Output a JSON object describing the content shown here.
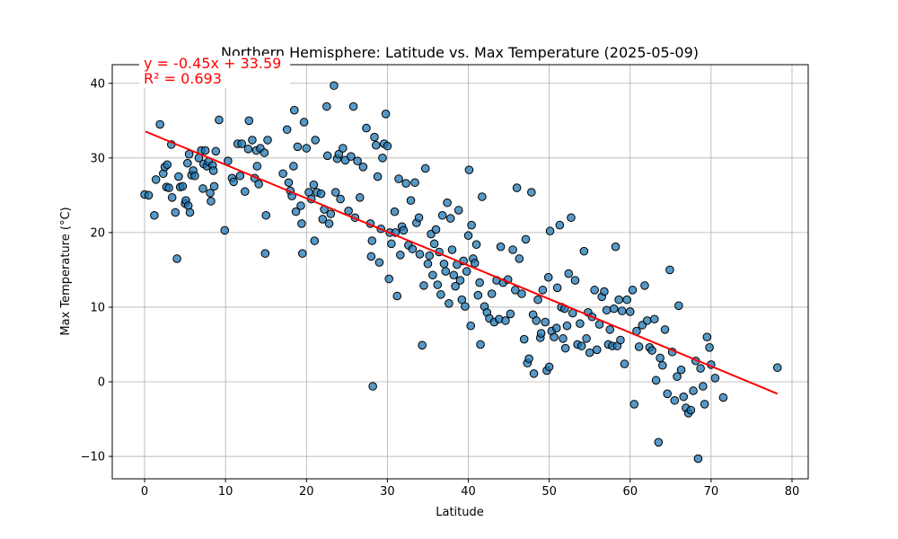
{
  "chart_data": {
    "type": "scatter",
    "title": "Northern Hemisphere: Latitude vs. Max Temperature (2025-05-09)",
    "xlabel": "Latitude",
    "ylabel": "Max Temperature (°C)",
    "xlim": [
      -4,
      82
    ],
    "ylim": [
      -13,
      42.5
    ],
    "xticks": [
      0,
      10,
      20,
      30,
      40,
      50,
      60,
      70,
      80
    ],
    "yticks": [
      -10,
      0,
      10,
      20,
      30,
      40
    ],
    "grid": true,
    "marker_color": "#1f77b4",
    "line_color": "#ff0000",
    "regression": {
      "slope": -0.45,
      "intercept": 33.59,
      "x_range": [
        0.1,
        78.2
      ],
      "equation": "y = -0.45x + 33.59",
      "r_squared": "R² = 0.693"
    },
    "points": [
      [
        0.0,
        25.1
      ],
      [
        0.5,
        25.0
      ],
      [
        1.2,
        22.3
      ],
      [
        1.4,
        27.1
      ],
      [
        1.9,
        34.5
      ],
      [
        2.3,
        27.9
      ],
      [
        2.5,
        28.8
      ],
      [
        2.7,
        26.1
      ],
      [
        2.8,
        29.1
      ],
      [
        3.0,
        26.0
      ],
      [
        3.3,
        31.8
      ],
      [
        3.4,
        24.7
      ],
      [
        3.8,
        22.7
      ],
      [
        4.0,
        16.5
      ],
      [
        4.2,
        27.5
      ],
      [
        4.4,
        26.1
      ],
      [
        4.7,
        26.2
      ],
      [
        5.0,
        23.9
      ],
      [
        5.1,
        24.3
      ],
      [
        5.3,
        29.3
      ],
      [
        5.4,
        23.6
      ],
      [
        5.5,
        30.5
      ],
      [
        5.6,
        22.7
      ],
      [
        5.8,
        27.7
      ],
      [
        6.0,
        28.3
      ],
      [
        6.2,
        27.6
      ],
      [
        6.7,
        30.0
      ],
      [
        7.0,
        31.0
      ],
      [
        7.2,
        25.9
      ],
      [
        7.3,
        29.2
      ],
      [
        7.5,
        31.0
      ],
      [
        7.7,
        28.9
      ],
      [
        7.9,
        29.5
      ],
      [
        8.1,
        25.3
      ],
      [
        8.2,
        24.2
      ],
      [
        8.4,
        29.0
      ],
      [
        8.5,
        28.3
      ],
      [
        8.6,
        26.2
      ],
      [
        8.8,
        30.9
      ],
      [
        9.2,
        35.1
      ],
      [
        9.9,
        20.3
      ],
      [
        10.3,
        29.6
      ],
      [
        10.8,
        27.3
      ],
      [
        11.0,
        26.8
      ],
      [
        11.5,
        31.9
      ],
      [
        11.8,
        27.6
      ],
      [
        12.0,
        31.9
      ],
      [
        12.4,
        25.5
      ],
      [
        12.8,
        31.2
      ],
      [
        12.9,
        35.0
      ],
      [
        13.3,
        32.4
      ],
      [
        13.6,
        27.3
      ],
      [
        13.8,
        31.0
      ],
      [
        13.9,
        28.9
      ],
      [
        14.1,
        26.5
      ],
      [
        14.3,
        31.3
      ],
      [
        14.8,
        30.7
      ],
      [
        14.9,
        17.2
      ],
      [
        15.0,
        22.3
      ],
      [
        15.2,
        32.4
      ],
      [
        17.1,
        27.9
      ],
      [
        17.6,
        33.8
      ],
      [
        17.8,
        26.7
      ],
      [
        18.0,
        25.6
      ],
      [
        18.2,
        24.9
      ],
      [
        18.4,
        28.9
      ],
      [
        18.5,
        36.4
      ],
      [
        18.7,
        22.8
      ],
      [
        18.9,
        31.5
      ],
      [
        19.3,
        23.6
      ],
      [
        19.4,
        21.2
      ],
      [
        19.5,
        17.2
      ],
      [
        19.7,
        34.8
      ],
      [
        20.0,
        31.3
      ],
      [
        20.3,
        25.4
      ],
      [
        20.6,
        24.5
      ],
      [
        20.9,
        26.4
      ],
      [
        21.0,
        18.9
      ],
      [
        21.1,
        32.4
      ],
      [
        21.3,
        25.4
      ],
      [
        21.8,
        25.2
      ],
      [
        22.0,
        21.8
      ],
      [
        22.2,
        23.1
      ],
      [
        22.5,
        36.9
      ],
      [
        22.6,
        30.3
      ],
      [
        22.8,
        21.2
      ],
      [
        23.0,
        22.5
      ],
      [
        23.4,
        39.7
      ],
      [
        23.6,
        25.4
      ],
      [
        23.8,
        29.9
      ],
      [
        24.0,
        30.5
      ],
      [
        24.2,
        24.5
      ],
      [
        24.5,
        31.3
      ],
      [
        24.8,
        29.7
      ],
      [
        25.2,
        22.9
      ],
      [
        25.5,
        30.2
      ],
      [
        25.8,
        36.9
      ],
      [
        26.0,
        22.0
      ],
      [
        26.3,
        29.6
      ],
      [
        26.6,
        24.7
      ],
      [
        27.0,
        28.8
      ],
      [
        27.4,
        34.0
      ],
      [
        27.9,
        21.2
      ],
      [
        28.0,
        16.8
      ],
      [
        28.1,
        18.9
      ],
      [
        28.2,
        -0.6
      ],
      [
        28.4,
        32.8
      ],
      [
        28.6,
        31.7
      ],
      [
        28.8,
        27.5
      ],
      [
        29.0,
        16.0
      ],
      [
        29.2,
        20.5
      ],
      [
        29.4,
        30.0
      ],
      [
        29.6,
        31.9
      ],
      [
        29.8,
        35.9
      ],
      [
        30.0,
        31.6
      ],
      [
        30.2,
        13.8
      ],
      [
        30.3,
        20.0
      ],
      [
        30.5,
        18.5
      ],
      [
        30.9,
        22.8
      ],
      [
        31.0,
        20.0
      ],
      [
        31.2,
        11.5
      ],
      [
        31.4,
        27.2
      ],
      [
        31.6,
        17.0
      ],
      [
        31.8,
        20.8
      ],
      [
        32.0,
        20.3
      ],
      [
        32.3,
        26.6
      ],
      [
        32.6,
        18.3
      ],
      [
        32.9,
        24.3
      ],
      [
        33.1,
        17.8
      ],
      [
        33.4,
        26.7
      ],
      [
        33.6,
        21.3
      ],
      [
        33.9,
        22.0
      ],
      [
        34.0,
        17.1
      ],
      [
        34.3,
        4.9
      ],
      [
        34.5,
        12.9
      ],
      [
        34.7,
        28.6
      ],
      [
        35.0,
        15.8
      ],
      [
        35.2,
        16.9
      ],
      [
        35.4,
        19.8
      ],
      [
        35.6,
        14.3
      ],
      [
        35.8,
        18.5
      ],
      [
        36.0,
        20.4
      ],
      [
        36.2,
        13.0
      ],
      [
        36.4,
        17.4
      ],
      [
        36.6,
        11.7
      ],
      [
        36.8,
        22.3
      ],
      [
        37.0,
        15.8
      ],
      [
        37.2,
        14.8
      ],
      [
        37.4,
        24.0
      ],
      [
        37.6,
        10.5
      ],
      [
        37.8,
        21.9
      ],
      [
        38.0,
        17.7
      ],
      [
        38.2,
        14.3
      ],
      [
        38.4,
        12.8
      ],
      [
        38.6,
        15.7
      ],
      [
        38.8,
        23.0
      ],
      [
        39.0,
        13.6
      ],
      [
        39.2,
        11.0
      ],
      [
        39.4,
        16.2
      ],
      [
        39.6,
        10.1
      ],
      [
        39.8,
        14.8
      ],
      [
        40.0,
        19.6
      ],
      [
        40.1,
        28.4
      ],
      [
        40.3,
        7.5
      ],
      [
        40.4,
        21.0
      ],
      [
        40.6,
        16.5
      ],
      [
        40.8,
        15.9
      ],
      [
        41.0,
        18.4
      ],
      [
        41.2,
        11.6
      ],
      [
        41.4,
        13.3
      ],
      [
        41.5,
        5.0
      ],
      [
        41.7,
        24.8
      ],
      [
        42.0,
        10.1
      ],
      [
        42.3,
        9.3
      ],
      [
        42.6,
        8.5
      ],
      [
        42.9,
        11.8
      ],
      [
        43.2,
        8.0
      ],
      [
        43.5,
        13.6
      ],
      [
        43.8,
        8.4
      ],
      [
        44.0,
        18.1
      ],
      [
        44.3,
        13.3
      ],
      [
        44.6,
        8.2
      ],
      [
        44.9,
        13.7
      ],
      [
        45.2,
        9.1
      ],
      [
        45.5,
        17.7
      ],
      [
        45.8,
        12.3
      ],
      [
        46.0,
        26.0
      ],
      [
        46.3,
        16.5
      ],
      [
        46.6,
        11.8
      ],
      [
        46.9,
        5.7
      ],
      [
        47.1,
        19.1
      ],
      [
        47.3,
        2.5
      ],
      [
        47.5,
        3.1
      ],
      [
        47.8,
        25.4
      ],
      [
        48.0,
        9.0
      ],
      [
        48.1,
        1.1
      ],
      [
        48.4,
        8.2
      ],
      [
        48.6,
        11.0
      ],
      [
        48.9,
        5.9
      ],
      [
        49.0,
        6.5
      ],
      [
        49.2,
        12.3
      ],
      [
        49.5,
        8.0
      ],
      [
        49.7,
        1.5
      ],
      [
        49.9,
        14.0
      ],
      [
        50.0,
        2.0
      ],
      [
        50.1,
        20.2
      ],
      [
        50.3,
        6.8
      ],
      [
        50.6,
        6.0
      ],
      [
        50.9,
        7.2
      ],
      [
        51.0,
        12.6
      ],
      [
        51.3,
        21.0
      ],
      [
        51.5,
        10.0
      ],
      [
        51.7,
        5.8
      ],
      [
        51.9,
        9.8
      ],
      [
        52.0,
        4.5
      ],
      [
        52.2,
        7.5
      ],
      [
        52.4,
        14.5
      ],
      [
        52.7,
        22.0
      ],
      [
        52.9,
        9.2
      ],
      [
        53.2,
        13.6
      ],
      [
        53.5,
        5.0
      ],
      [
        53.8,
        7.8
      ],
      [
        54.0,
        4.8
      ],
      [
        54.3,
        17.5
      ],
      [
        54.6,
        5.8
      ],
      [
        54.8,
        9.3
      ],
      [
        55.0,
        3.9
      ],
      [
        55.3,
        8.7
      ],
      [
        55.6,
        12.3
      ],
      [
        55.9,
        4.3
      ],
      [
        56.2,
        7.7
      ],
      [
        56.5,
        11.4
      ],
      [
        56.8,
        12.1
      ],
      [
        57.1,
        9.6
      ],
      [
        57.3,
        5.0
      ],
      [
        57.5,
        7.0
      ],
      [
        57.8,
        4.8
      ],
      [
        58.0,
        9.8
      ],
      [
        58.2,
        18.1
      ],
      [
        58.4,
        4.8
      ],
      [
        58.6,
        11.0
      ],
      [
        58.8,
        5.6
      ],
      [
        59.0,
        9.5
      ],
      [
        59.3,
        2.4
      ],
      [
        59.6,
        11.0
      ],
      [
        60.0,
        9.4
      ],
      [
        60.3,
        12.3
      ],
      [
        60.5,
        -3.0
      ],
      [
        60.8,
        6.8
      ],
      [
        61.1,
        4.7
      ],
      [
        61.5,
        7.6
      ],
      [
        61.8,
        12.9
      ],
      [
        62.1,
        8.2
      ],
      [
        62.4,
        4.6
      ],
      [
        62.7,
        4.2
      ],
      [
        63.0,
        8.4
      ],
      [
        63.2,
        0.2
      ],
      [
        63.5,
        -8.1
      ],
      [
        63.7,
        3.2
      ],
      [
        64.0,
        2.2
      ],
      [
        64.3,
        7.0
      ],
      [
        64.6,
        -1.6
      ],
      [
        64.9,
        15.0
      ],
      [
        65.2,
        4.0
      ],
      [
        65.5,
        -2.5
      ],
      [
        65.8,
        0.7
      ],
      [
        66.0,
        10.2
      ],
      [
        66.3,
        1.6
      ],
      [
        66.6,
        -2.0
      ],
      [
        66.9,
        -3.5
      ],
      [
        67.2,
        -4.2
      ],
      [
        67.5,
        -3.8
      ],
      [
        67.8,
        -1.2
      ],
      [
        68.1,
        2.8
      ],
      [
        68.4,
        -10.3
      ],
      [
        68.7,
        1.8
      ],
      [
        69.0,
        -0.6
      ],
      [
        69.2,
        -3.0
      ],
      [
        69.5,
        6.0
      ],
      [
        69.8,
        4.6
      ],
      [
        70.0,
        2.3
      ],
      [
        70.5,
        0.5
      ],
      [
        71.5,
        -2.1
      ],
      [
        78.2,
        1.9
      ]
    ]
  }
}
